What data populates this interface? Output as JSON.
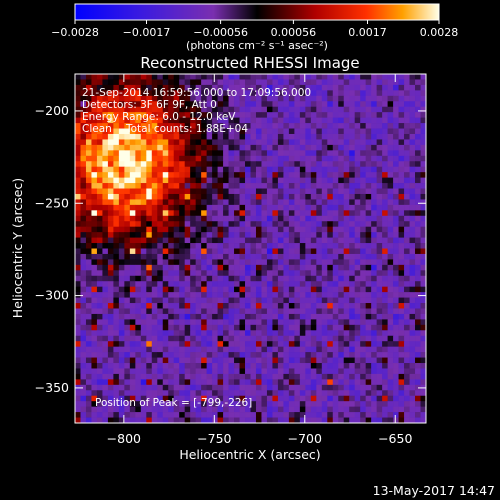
{
  "chart_data": {
    "type": "heatmap",
    "title": "Reconstructed RHESSI Image",
    "xlabel": "Heliocentric X (arcsec)",
    "ylabel": "Heliocentric Y (arcsec)",
    "xlim": [
      -827,
      -633
    ],
    "ylim": [
      -369,
      -180
    ],
    "x_ticks": [
      -800,
      -750,
      -700,
      -650
    ],
    "y_ticks": [
      -200,
      -250,
      -300,
      -350
    ],
    "x_tick_labels": [
      "−800",
      "−750",
      "−700",
      "−650"
    ],
    "y_tick_labels": [
      "−200",
      "−250",
      "−300",
      "−350"
    ],
    "colorbar": {
      "range": [
        -0.0028,
        0.0028
      ],
      "ticks": [
        -0.0028,
        -0.0017,
        -0.00056,
        0.00056,
        0.0017,
        0.0028
      ],
      "tick_labels": [
        "−0.0028",
        "−0.0017",
        "−0.00056",
        "0.00056",
        "0.0017",
        "0.0028"
      ],
      "unit_label": "(photons cm⁻² s⁻¹ asec⁻²)"
    },
    "annotations": [
      "21-Sep-2014 16:59:56.000 to 17:09:56.000",
      "Detectors: 3F 6F 9F, Att 0",
      "Energy Range: 6.0 - 12.0 keV",
      "Clean",
      "Total counts: 1.88E+04"
    ],
    "peak_label": "Position of Peak = [-799,-226]",
    "peak_position": [
      -799,
      -226
    ],
    "footer_timestamp": "13-May-2017 14:47",
    "colors": {
      "background": "#000000",
      "background_level": "#5a1f9c",
      "peak": "#fff8b0"
    }
  }
}
